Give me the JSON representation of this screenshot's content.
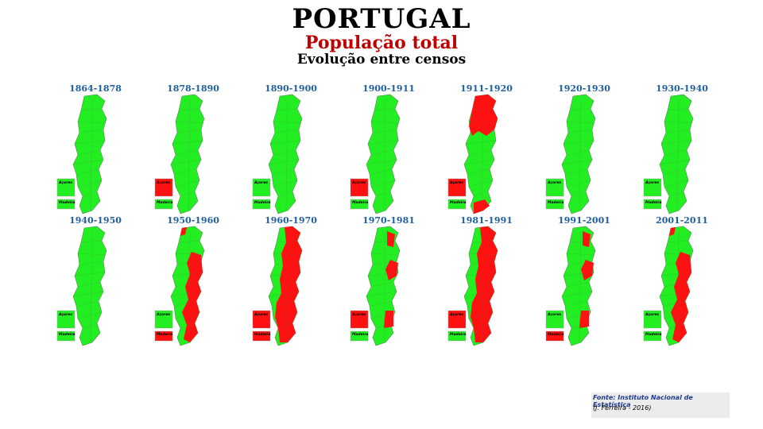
{
  "header": {
    "title": "PORTUGAL",
    "subtitle": "População total",
    "subtitle2": "Evolução entre censos"
  },
  "colors": {
    "growth": "#22ee22",
    "decline": "#ff1111",
    "label": "#1f5fa0",
    "subtitle": "#c00000"
  },
  "inset_labels": {
    "azores": "Açores",
    "madeira": "Madeira"
  },
  "panels": [
    {
      "label": "1864-1878",
      "pattern": "all-green",
      "azores": "growth",
      "madeira": "growth"
    },
    {
      "label": "1878-1890",
      "pattern": "all-green",
      "azores": "decline",
      "madeira": "growth"
    },
    {
      "label": "1890-1900",
      "pattern": "all-green",
      "azores": "growth",
      "madeira": "growth"
    },
    {
      "label": "1900-1911",
      "pattern": "all-green",
      "azores": "decline",
      "madeira": "growth"
    },
    {
      "label": "1911-1920",
      "pattern": "north-red",
      "azores": "decline",
      "madeira": "growth"
    },
    {
      "label": "1920-1930",
      "pattern": "all-green",
      "azores": "growth",
      "madeira": "growth"
    },
    {
      "label": "1930-1940",
      "pattern": "all-green",
      "azores": "growth",
      "madeira": "growth"
    },
    {
      "label": "1940-1950",
      "pattern": "all-green",
      "azores": "growth",
      "madeira": "growth"
    },
    {
      "label": "1950-1960",
      "pattern": "interior-red",
      "azores": "growth",
      "madeira": "decline"
    },
    {
      "label": "1960-1970",
      "pattern": "mostly-red",
      "azores": "decline",
      "madeira": "decline"
    },
    {
      "label": "1970-1981",
      "pattern": "interior-red-light",
      "azores": "decline",
      "madeira": "growth"
    },
    {
      "label": "1981-1991",
      "pattern": "mostly-red",
      "azores": "decline",
      "madeira": "growth"
    },
    {
      "label": "1991-2001",
      "pattern": "interior-red-light",
      "azores": "growth",
      "madeira": "decline"
    },
    {
      "label": "2001-2011",
      "pattern": "interior-red",
      "azores": "growth",
      "madeira": "growth"
    }
  ],
  "source": {
    "line1": "Fonte: Instituto Nacional de Estatística",
    "line2": "(J. Ferreira - 2016)"
  }
}
